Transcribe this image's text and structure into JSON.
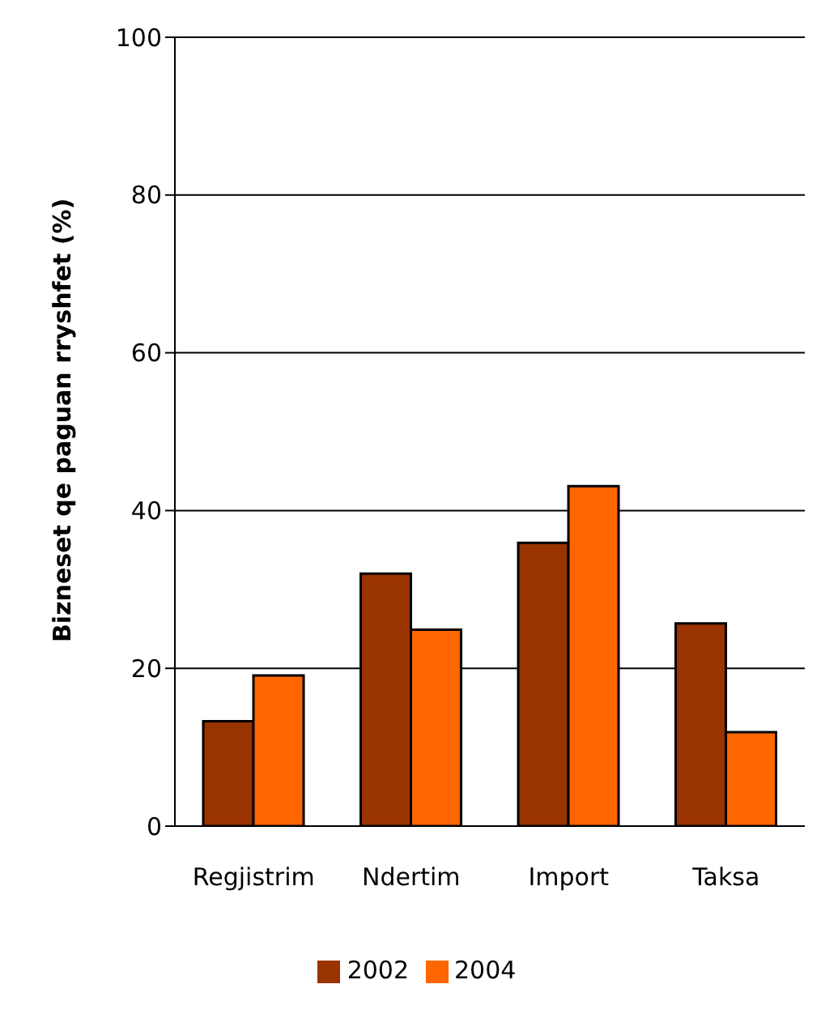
{
  "chart_data": {
    "type": "bar",
    "ylabel": "Bizneset qe paguan rryshfet (%)",
    "categories": [
      "Regjistrim",
      "Ndertim",
      "Import",
      "Taksa"
    ],
    "series": [
      {
        "name": "2002",
        "color": "#993300",
        "values": [
          13.3,
          32,
          35.9,
          25.7
        ]
      },
      {
        "name": "2004",
        "color": "#ff6600",
        "values": [
          19.1,
          24.9,
          43.1,
          11.9
        ]
      }
    ],
    "ylim": [
      0,
      100
    ],
    "yticks": [
      0,
      20,
      40,
      60,
      80,
      100
    ],
    "grid": "y",
    "legend": "bottom"
  }
}
